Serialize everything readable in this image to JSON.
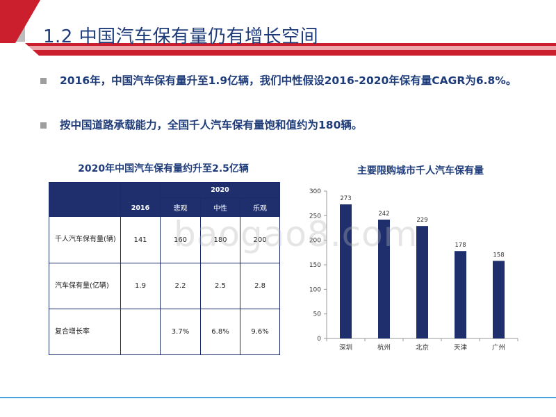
{
  "slide": {
    "title": "1.2 中国汽车保有量仍有增长空间"
  },
  "bullets": [
    "2016年，中国汽车保有量升至1.9亿辆，我们中性假设2016-2020年保有量CAGR为6.8%。",
    "按中国道路承载能力，全国千人汽车保有量饱和值约为180辆。"
  ],
  "table": {
    "title": "2020年中国汽车保有量约升至2.5亿辆",
    "header_2020": "2020",
    "header_2016": "2016",
    "scenarios": [
      "悲观",
      "中性",
      "乐观"
    ],
    "rows": [
      {
        "label": "千人汽车保有量(辆)",
        "v2016": "141",
        "values": [
          "160",
          "180",
          "200"
        ]
      },
      {
        "label": "汽车保有量(亿辆)",
        "v2016": "1.9",
        "values": [
          "2.2",
          "2.5",
          "2.8"
        ]
      },
      {
        "label": "复合增长率",
        "v2016": "",
        "values": [
          "3.7%",
          "6.8%",
          "9.6%"
        ]
      }
    ]
  },
  "watermark": "baogao8.com",
  "colors": {
    "title_blue": "#1f3c7a",
    "bar": "#1f2f6e",
    "table_header": "#1f2f6e",
    "deco_red": "#cc1f2d",
    "bottom_line": "#4aa3df"
  },
  "chart_data": {
    "type": "bar",
    "title": "主要限购城市千人汽车保有量",
    "categories": [
      "深圳",
      "杭州",
      "北京",
      "天津",
      "广州"
    ],
    "values": [
      273,
      242,
      229,
      178,
      158
    ],
    "data_labels": [
      "273",
      "242",
      "229",
      "178",
      "158"
    ],
    "ylim": [
      0,
      300
    ],
    "yticks": [
      0,
      50,
      100,
      150,
      200,
      250,
      300
    ],
    "grid": false,
    "xlabel": "",
    "ylabel": ""
  }
}
